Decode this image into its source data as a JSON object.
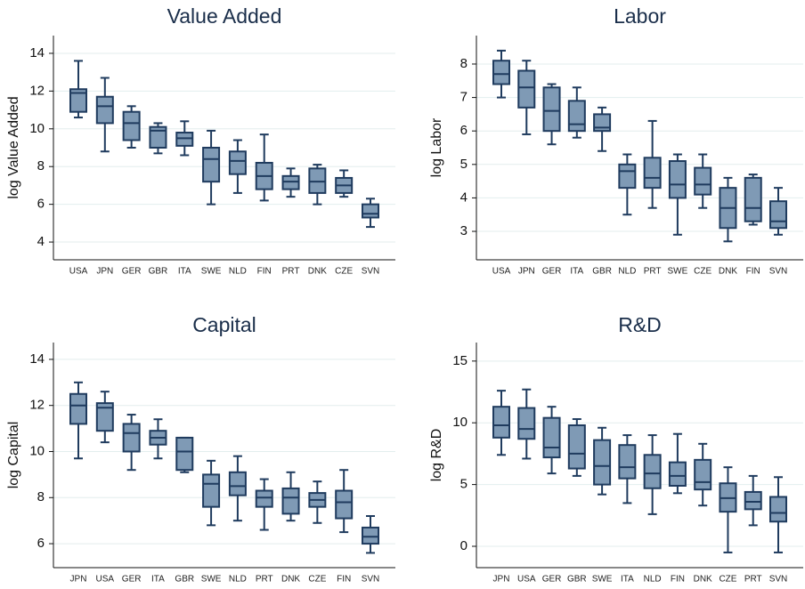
{
  "chart_data": [
    {
      "type": "box",
      "title": "Value Added",
      "y_label": "log Value Added",
      "fill": "#7f9ab5",
      "stroke": "#1f3b5e",
      "ylim": [
        3.06,
        14.94
      ],
      "yticks": [
        4,
        6,
        8,
        10,
        12,
        14
      ],
      "grid": true,
      "categories": [
        "USA",
        "JPN",
        "GER",
        "GBR",
        "ITA",
        "SWE",
        "NLD",
        "FIN",
        "PRT",
        "DNK",
        "CZE",
        "SVN"
      ],
      "boxes": [
        {
          "min": 10.6,
          "q1": 10.9,
          "median": 11.9,
          "q3": 12.1,
          "max": 13.6
        },
        {
          "min": 8.8,
          "q1": 10.3,
          "median": 11.2,
          "q3": 11.7,
          "max": 12.7
        },
        {
          "min": 9.0,
          "q1": 9.4,
          "median": 10.3,
          "q3": 10.9,
          "max": 11.2
        },
        {
          "min": 8.7,
          "q1": 9.0,
          "median": 9.9,
          "q3": 10.1,
          "max": 10.3
        },
        {
          "min": 8.6,
          "q1": 9.1,
          "median": 9.5,
          "q3": 9.8,
          "max": 10.4
        },
        {
          "min": 6.0,
          "q1": 7.2,
          "median": 8.4,
          "q3": 9.0,
          "max": 9.9
        },
        {
          "min": 6.6,
          "q1": 7.6,
          "median": 8.3,
          "q3": 8.8,
          "max": 9.4
        },
        {
          "min": 6.2,
          "q1": 6.8,
          "median": 7.5,
          "q3": 8.2,
          "max": 9.7
        },
        {
          "min": 6.4,
          "q1": 6.8,
          "median": 7.2,
          "q3": 7.5,
          "max": 7.9
        },
        {
          "min": 6.0,
          "q1": 6.6,
          "median": 7.2,
          "q3": 7.9,
          "max": 8.1
        },
        {
          "min": 6.4,
          "q1": 6.6,
          "median": 7.0,
          "q3": 7.4,
          "max": 7.8
        },
        {
          "min": 4.8,
          "q1": 5.3,
          "median": 5.5,
          "q3": 6.0,
          "max": 6.3
        }
      ]
    },
    {
      "type": "box",
      "title": "Labor",
      "y_label": "log Labor",
      "fill": "#7f9ab5",
      "stroke": "#1f3b5e",
      "ylim": [
        2.15,
        8.85
      ],
      "yticks": [
        3,
        4,
        5,
        6,
        7,
        8
      ],
      "grid": true,
      "categories": [
        "USA",
        "JPN",
        "GER",
        "ITA",
        "GBR",
        "NLD",
        "PRT",
        "SWE",
        "CZE",
        "DNK",
        "FIN",
        "SVN"
      ],
      "boxes": [
        {
          "min": 7.0,
          "q1": 7.4,
          "median": 7.7,
          "q3": 8.1,
          "max": 8.4
        },
        {
          "min": 5.9,
          "q1": 6.7,
          "median": 7.3,
          "q3": 7.8,
          "max": 8.1
        },
        {
          "min": 5.6,
          "q1": 6.0,
          "median": 6.6,
          "q3": 7.3,
          "max": 7.4
        },
        {
          "min": 5.8,
          "q1": 6.0,
          "median": 6.2,
          "q3": 6.9,
          "max": 7.3
        },
        {
          "min": 5.4,
          "q1": 6.0,
          "median": 6.1,
          "q3": 6.5,
          "max": 6.7
        },
        {
          "min": 3.5,
          "q1": 4.3,
          "median": 4.8,
          "q3": 5.0,
          "max": 5.3
        },
        {
          "min": 3.7,
          "q1": 4.3,
          "median": 4.6,
          "q3": 5.2,
          "max": 6.3
        },
        {
          "min": 2.9,
          "q1": 4.0,
          "median": 4.4,
          "q3": 5.1,
          "max": 5.3
        },
        {
          "min": 3.7,
          "q1": 4.1,
          "median": 4.4,
          "q3": 4.9,
          "max": 5.3
        },
        {
          "min": 2.7,
          "q1": 3.1,
          "median": 3.7,
          "q3": 4.3,
          "max": 4.6
        },
        {
          "min": 3.2,
          "q1": 3.3,
          "median": 3.7,
          "q3": 4.6,
          "max": 4.7
        },
        {
          "min": 2.9,
          "q1": 3.1,
          "median": 3.3,
          "q3": 3.9,
          "max": 4.3
        }
      ]
    },
    {
      "type": "box",
      "title": "Capital",
      "y_label": "log Capital",
      "fill": "#7f9ab5",
      "stroke": "#1f3b5e",
      "ylim": [
        4.96,
        14.73
      ],
      "yticks": [
        6,
        8,
        10,
        12,
        14
      ],
      "grid": true,
      "categories": [
        "JPN",
        "USA",
        "GER",
        "ITA",
        "GBR",
        "SWE",
        "NLD",
        "PRT",
        "DNK",
        "CZE",
        "FIN",
        "SVN"
      ],
      "boxes": [
        {
          "min": 9.7,
          "q1": 11.2,
          "median": 12.0,
          "q3": 12.5,
          "max": 13.0
        },
        {
          "min": 10.4,
          "q1": 10.9,
          "median": 11.9,
          "q3": 12.1,
          "max": 12.6
        },
        {
          "min": 9.2,
          "q1": 10.0,
          "median": 10.8,
          "q3": 11.2,
          "max": 11.6
        },
        {
          "min": 9.7,
          "q1": 10.3,
          "median": 10.6,
          "q3": 10.9,
          "max": 11.4
        },
        {
          "min": 9.1,
          "q1": 9.2,
          "median": 10.0,
          "q3": 10.6,
          "max": 10.6
        },
        {
          "min": 6.8,
          "q1": 7.6,
          "median": 8.6,
          "q3": 9.0,
          "max": 9.6
        },
        {
          "min": 7.0,
          "q1": 8.1,
          "median": 8.5,
          "q3": 9.1,
          "max": 9.8
        },
        {
          "min": 6.6,
          "q1": 7.6,
          "median": 8.0,
          "q3": 8.3,
          "max": 8.8
        },
        {
          "min": 7.0,
          "q1": 7.3,
          "median": 8.0,
          "q3": 8.4,
          "max": 9.1
        },
        {
          "min": 6.9,
          "q1": 7.6,
          "median": 7.9,
          "q3": 8.2,
          "max": 8.7
        },
        {
          "min": 6.5,
          "q1": 7.1,
          "median": 7.8,
          "q3": 8.3,
          "max": 9.2
        },
        {
          "min": 5.6,
          "q1": 6.0,
          "median": 6.3,
          "q3": 6.7,
          "max": 7.2
        }
      ]
    },
    {
      "type": "box",
      "title": "R&D",
      "y_label": "log R&D",
      "fill": "#7f9ab5",
      "stroke": "#1f3b5e",
      "ylim": [
        -1.73,
        16.5
      ],
      "yticks": [
        0,
        5,
        10,
        15
      ],
      "grid": true,
      "categories": [
        "JPN",
        "USA",
        "GER",
        "GBR",
        "SWE",
        "ITA",
        "NLD",
        "FIN",
        "DNK",
        "CZE",
        "PRT",
        "SVN"
      ],
      "boxes": [
        {
          "min": 7.4,
          "q1": 8.8,
          "median": 9.8,
          "q3": 11.3,
          "max": 12.6
        },
        {
          "min": 7.1,
          "q1": 8.7,
          "median": 9.5,
          "q3": 11.2,
          "max": 12.7
        },
        {
          "min": 5.9,
          "q1": 7.2,
          "median": 8.0,
          "q3": 10.4,
          "max": 11.3
        },
        {
          "min": 5.7,
          "q1": 6.3,
          "median": 7.5,
          "q3": 9.8,
          "max": 10.3
        },
        {
          "min": 4.2,
          "q1": 5.0,
          "median": 6.5,
          "q3": 8.6,
          "max": 9.6
        },
        {
          "min": 3.5,
          "q1": 5.5,
          "median": 6.4,
          "q3": 8.2,
          "max": 9.0
        },
        {
          "min": 2.6,
          "q1": 4.7,
          "median": 5.9,
          "q3": 7.4,
          "max": 9.0
        },
        {
          "min": 4.3,
          "q1": 4.9,
          "median": 5.7,
          "q3": 6.8,
          "max": 9.1
        },
        {
          "min": 3.3,
          "q1": 4.6,
          "median": 5.2,
          "q3": 7.0,
          "max": 8.3
        },
        {
          "min": -0.5,
          "q1": 2.8,
          "median": 3.9,
          "q3": 5.1,
          "max": 6.4
        },
        {
          "min": 1.7,
          "q1": 3.0,
          "median": 3.6,
          "q3": 4.4,
          "max": 5.7
        },
        {
          "min": -0.5,
          "q1": 2.0,
          "median": 2.7,
          "q3": 4.0,
          "max": 5.6
        }
      ]
    }
  ]
}
